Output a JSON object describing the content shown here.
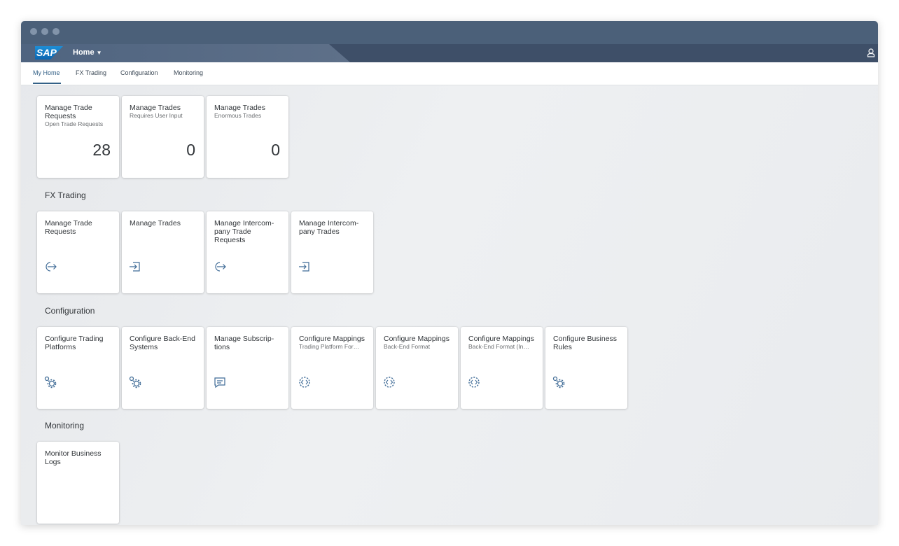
{
  "shell": {
    "logo": "SAP",
    "home_menu": "Home"
  },
  "tabs": [
    "My Home",
    "FX Trading",
    "Configuration",
    "Monitoring"
  ],
  "my_home_tiles": [
    {
      "title": "Manage Trade Requests",
      "subtitle": "Open Trade Requests",
      "number": "28"
    },
    {
      "title": "Manage Trades",
      "subtitle": "Requires User Input",
      "number": "0"
    },
    {
      "title": "Manage Trades",
      "subtitle": "Enormous Trades",
      "number": "0"
    }
  ],
  "sections": [
    {
      "title": "FX Trading",
      "tiles": [
        {
          "title": "Manage Trade Requests"
        },
        {
          "title": "Manage Trades"
        },
        {
          "title": "Manage Intercom-pany Trade Requests"
        },
        {
          "title": "Manage Intercom-pany Trades"
        }
      ]
    },
    {
      "title": "Configuration",
      "tiles": [
        {
          "title": "Configure Trading Platforms"
        },
        {
          "title": "Configure Back-End Systems"
        },
        {
          "title": "Manage Subscrip-tions"
        },
        {
          "title": "Configure Mappings",
          "subtitle": "Trading Platform For…"
        },
        {
          "title": "Configure Mappings",
          "subtitle": "Back-End Format"
        },
        {
          "title": "Configure Mappings",
          "subtitle": "Back-End Format (In…"
        },
        {
          "title": "Configure Business Rules"
        }
      ]
    },
    {
      "title": "Monitoring",
      "tiles": [
        {
          "title": "Monitor Business Logs"
        }
      ]
    }
  ]
}
